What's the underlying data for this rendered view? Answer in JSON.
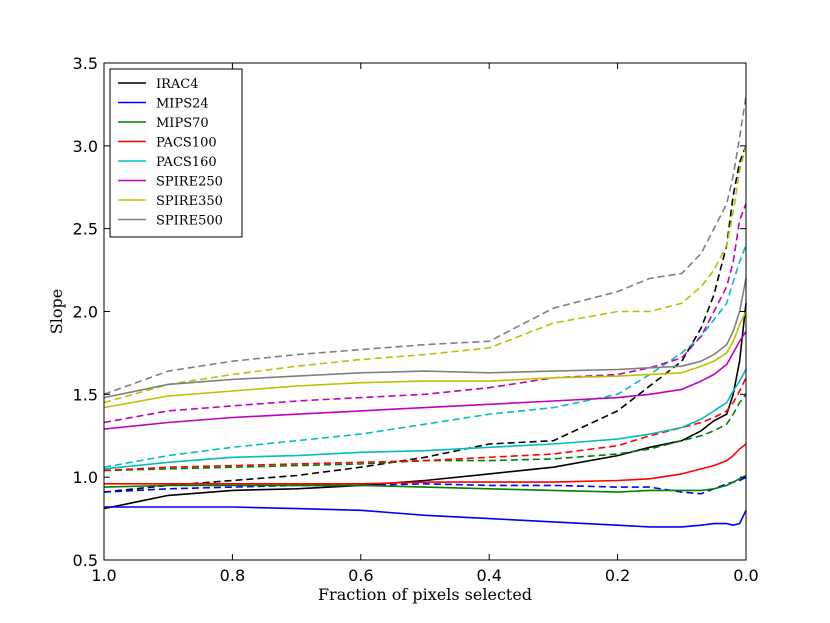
{
  "chart_data": {
    "type": "line",
    "title": "",
    "xlabel": "Fraction of pixels selected",
    "ylabel": "Slope",
    "xlim": [
      1.0,
      0.0
    ],
    "ylim": [
      0.5,
      3.5
    ],
    "xticks": [
      1.0,
      0.8,
      0.6,
      0.4,
      0.2,
      0.0
    ],
    "xtick_labels": [
      "1.0",
      "0.8",
      "0.6",
      "0.4",
      "0.2",
      "0.0"
    ],
    "yticks": [
      0.5,
      1.0,
      1.5,
      2.0,
      2.5,
      3.0,
      3.5
    ],
    "ytick_labels": [
      "0.5",
      "1.0",
      "1.5",
      "2.0",
      "2.5",
      "3.0",
      "3.5"
    ],
    "legend_position": "top-left",
    "x": [
      1.0,
      0.9,
      0.8,
      0.7,
      0.6,
      0.5,
      0.4,
      0.3,
      0.2,
      0.15,
      0.1,
      0.07,
      0.05,
      0.03,
      0.02,
      0.01,
      0.0
    ],
    "series": [
      {
        "name": "IRAC4",
        "color": "#000000",
        "style": "solid",
        "values": [
          0.81,
          0.89,
          0.92,
          0.93,
          0.95,
          0.98,
          1.02,
          1.06,
          1.13,
          1.18,
          1.22,
          1.28,
          1.34,
          1.38,
          1.5,
          1.7,
          2.05
        ]
      },
      {
        "name": "IRAC4",
        "color": "#000000",
        "style": "dashed",
        "in_legend": false,
        "values": [
          0.91,
          0.95,
          0.98,
          1.01,
          1.06,
          1.12,
          1.2,
          1.22,
          1.4,
          1.55,
          1.7,
          1.9,
          2.1,
          2.4,
          2.7,
          2.9,
          3.0
        ]
      },
      {
        "name": "MIPS24",
        "color": "#0000ff",
        "style": "solid",
        "values": [
          0.82,
          0.82,
          0.82,
          0.81,
          0.8,
          0.77,
          0.75,
          0.73,
          0.71,
          0.7,
          0.7,
          0.71,
          0.72,
          0.72,
          0.71,
          0.72,
          0.8
        ]
      },
      {
        "name": "MIPS24",
        "color": "#0000ff",
        "style": "dashed",
        "in_legend": false,
        "values": [
          0.91,
          0.93,
          0.94,
          0.95,
          0.95,
          0.96,
          0.95,
          0.95,
          0.94,
          0.94,
          0.91,
          0.9,
          0.93,
          0.96,
          0.97,
          0.98,
          1.0
        ]
      },
      {
        "name": "MIPS70",
        "color": "#008000",
        "style": "solid",
        "values": [
          0.94,
          0.95,
          0.95,
          0.95,
          0.95,
          0.94,
          0.93,
          0.92,
          0.91,
          0.92,
          0.92,
          0.92,
          0.93,
          0.95,
          0.97,
          0.99,
          1.01
        ]
      },
      {
        "name": "MIPS70",
        "color": "#008000",
        "style": "dashed",
        "in_legend": false,
        "values": [
          1.04,
          1.05,
          1.06,
          1.07,
          1.08,
          1.1,
          1.1,
          1.11,
          1.14,
          1.17,
          1.22,
          1.25,
          1.28,
          1.32,
          1.38,
          1.45,
          1.5
        ]
      },
      {
        "name": "PACS100",
        "color": "#ff0000",
        "style": "solid",
        "values": [
          0.96,
          0.96,
          0.96,
          0.96,
          0.96,
          0.97,
          0.97,
          0.97,
          0.98,
          0.99,
          1.02,
          1.05,
          1.07,
          1.1,
          1.13,
          1.17,
          1.2
        ]
      },
      {
        "name": "PACS100",
        "color": "#ff0000",
        "style": "dashed",
        "in_legend": false,
        "values": [
          1.04,
          1.06,
          1.07,
          1.08,
          1.09,
          1.1,
          1.12,
          1.14,
          1.19,
          1.25,
          1.3,
          1.33,
          1.36,
          1.4,
          1.45,
          1.52,
          1.6
        ]
      },
      {
        "name": "PACS160",
        "color": "#00bfbf",
        "style": "solid",
        "values": [
          1.05,
          1.09,
          1.12,
          1.13,
          1.15,
          1.16,
          1.18,
          1.2,
          1.23,
          1.26,
          1.3,
          1.35,
          1.4,
          1.45,
          1.52,
          1.58,
          1.65
        ]
      },
      {
        "name": "PACS160",
        "color": "#00bfbf",
        "style": "dashed",
        "in_legend": false,
        "values": [
          1.06,
          1.13,
          1.18,
          1.22,
          1.26,
          1.32,
          1.38,
          1.42,
          1.5,
          1.62,
          1.75,
          1.85,
          1.95,
          2.05,
          2.18,
          2.3,
          2.4
        ]
      },
      {
        "name": "SPIRE250",
        "color": "#bf00bf",
        "style": "solid",
        "values": [
          1.29,
          1.33,
          1.36,
          1.38,
          1.4,
          1.42,
          1.44,
          1.46,
          1.48,
          1.5,
          1.53,
          1.58,
          1.62,
          1.68,
          1.75,
          1.82,
          1.88
        ]
      },
      {
        "name": "SPIRE250",
        "color": "#bf00bf",
        "style": "dashed",
        "in_legend": false,
        "values": [
          1.33,
          1.4,
          1.43,
          1.46,
          1.48,
          1.5,
          1.54,
          1.6,
          1.62,
          1.66,
          1.72,
          1.85,
          2.0,
          2.15,
          2.3,
          2.55,
          2.65
        ]
      },
      {
        "name": "SPIRE350",
        "color": "#bfbf00",
        "style": "solid",
        "values": [
          1.42,
          1.49,
          1.52,
          1.55,
          1.57,
          1.58,
          1.58,
          1.6,
          1.61,
          1.62,
          1.63,
          1.67,
          1.7,
          1.75,
          1.82,
          1.92,
          2.0
        ]
      },
      {
        "name": "SPIRE350",
        "color": "#bfbf00",
        "style": "dashed",
        "in_legend": false,
        "values": [
          1.45,
          1.56,
          1.62,
          1.67,
          1.71,
          1.74,
          1.78,
          1.93,
          2.0,
          2.0,
          2.05,
          2.15,
          2.25,
          2.4,
          2.6,
          2.85,
          3.0
        ]
      },
      {
        "name": "SPIRE500",
        "color": "#808080",
        "style": "solid",
        "values": [
          1.48,
          1.56,
          1.59,
          1.61,
          1.63,
          1.64,
          1.63,
          1.64,
          1.65,
          1.66,
          1.67,
          1.7,
          1.74,
          1.8,
          1.88,
          2.0,
          2.2
        ]
      },
      {
        "name": "SPIRE500",
        "color": "#808080",
        "style": "dashed",
        "in_legend": false,
        "values": [
          1.5,
          1.64,
          1.7,
          1.74,
          1.77,
          1.8,
          1.82,
          2.02,
          2.12,
          2.2,
          2.23,
          2.35,
          2.5,
          2.65,
          2.82,
          3.05,
          3.3
        ]
      }
    ]
  }
}
